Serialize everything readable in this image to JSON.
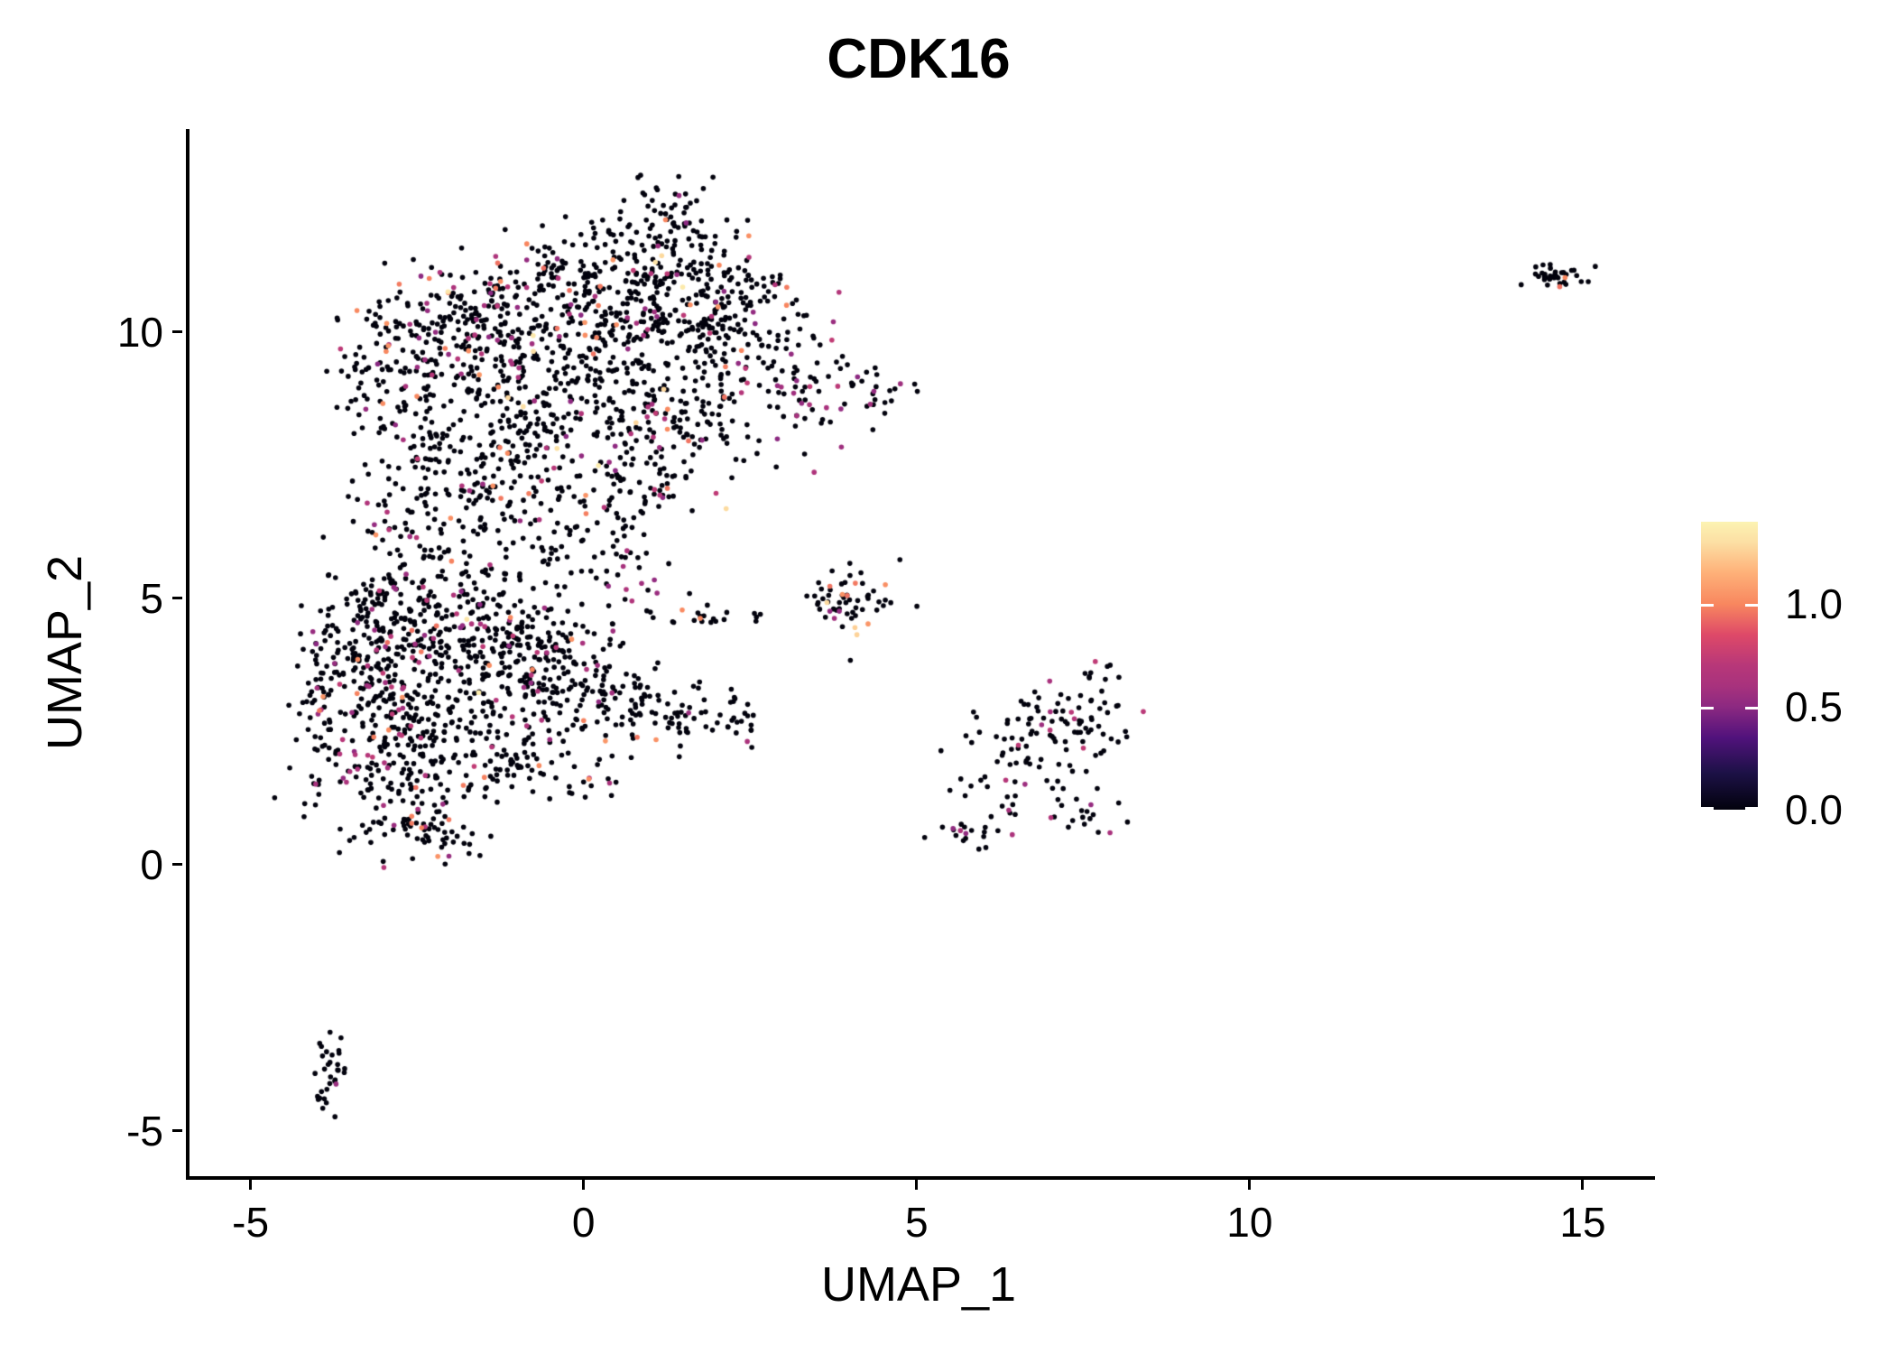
{
  "chart_data": {
    "type": "scatter",
    "title": "CDK16",
    "xlabel": "UMAP_1",
    "ylabel": "UMAP_2",
    "x_ticks": [
      -5,
      0,
      5,
      10,
      15
    ],
    "y_ticks": [
      -5,
      0,
      5,
      10
    ],
    "xlim": [
      -5.97,
      16.03
    ],
    "ylim": [
      -5.85,
      13.81
    ],
    "grid": false,
    "point_radius_px": 2.8,
    "seed": 42,
    "legend": {
      "ticks": [
        1.0,
        0.5,
        0.0
      ],
      "vmin": 0.0,
      "vmax": 1.4,
      "position": "right"
    },
    "colorscale": [
      [
        0.0,
        "#02020d"
      ],
      [
        0.18,
        "#1d1147"
      ],
      [
        0.35,
        "#51127c"
      ],
      [
        0.5,
        "#8c2981"
      ],
      [
        0.6,
        "#a8327d"
      ],
      [
        0.7,
        "#b73779"
      ],
      [
        0.85,
        "#de4968"
      ],
      [
        1.0,
        "#f8875f"
      ],
      [
        1.15,
        "#feb078"
      ],
      [
        1.3,
        "#fcdfa4"
      ],
      [
        1.4,
        "#fcf3b2"
      ]
    ],
    "mixes": {
      "standard": [
        [
          0,
          0.878
        ],
        [
          0.55,
          0.04
        ],
        [
          0.68,
          0.04
        ],
        [
          1.0,
          0.035
        ],
        [
          1.32,
          0.007
        ]
      ],
      "magenta": [
        [
          0,
          0.74
        ],
        [
          0.55,
          0.13
        ],
        [
          0.68,
          0.13
        ]
      ],
      "magenta2": [
        [
          0,
          0.8
        ],
        [
          0.55,
          0.1
        ],
        [
          0.68,
          0.1
        ]
      ],
      "plain": [
        [
          0,
          0.95
        ],
        [
          0.6,
          0.035
        ],
        [
          1.0,
          0.015
        ]
      ],
      "orange": [
        [
          0,
          0.82
        ],
        [
          0.55,
          0.05
        ],
        [
          1.0,
          0.1
        ],
        [
          1.3,
          0.03
        ]
      ],
      "black": [
        [
          0,
          1.0
        ]
      ]
    },
    "clusters": [
      {
        "x": 1.15,
        "y": 12.2,
        "sx": 0.45,
        "sy": 0.35,
        "n": 55,
        "mix": "standard"
      },
      {
        "x": 0.3,
        "y": 11.3,
        "sx": 0.9,
        "sy": 0.5,
        "n": 130,
        "mix": "standard"
      },
      {
        "x": 1.7,
        "y": 11.0,
        "sx": 0.6,
        "sy": 0.5,
        "n": 80,
        "mix": "standard"
      },
      {
        "x": -0.8,
        "y": 10.3,
        "sx": 0.9,
        "sy": 0.5,
        "n": 140,
        "mix": "standard"
      },
      {
        "x": 0.7,
        "y": 10.1,
        "sx": 0.8,
        "sy": 0.5,
        "n": 130,
        "mix": "standard"
      },
      {
        "x": 2.2,
        "y": 9.9,
        "sx": 0.6,
        "sy": 0.55,
        "n": 90,
        "mix": "standard"
      },
      {
        "x": -2.2,
        "y": 9.8,
        "sx": 0.65,
        "sy": 0.5,
        "n": 100,
        "mix": "standard"
      },
      {
        "x": -3.1,
        "y": 9.2,
        "sx": 0.4,
        "sy": 0.55,
        "n": 55,
        "mix": "standard"
      },
      {
        "x": 3.2,
        "y": 9.0,
        "sx": 0.5,
        "sy": 0.55,
        "n": 65,
        "mix": "magenta"
      },
      {
        "x": 4.2,
        "y": 8.8,
        "sx": 0.35,
        "sy": 0.3,
        "n": 20,
        "mix": "plain"
      },
      {
        "x": -1.1,
        "y": 9.0,
        "sx": 0.8,
        "sy": 0.55,
        "n": 130,
        "mix": "standard"
      },
      {
        "x": 0.5,
        "y": 8.8,
        "sx": 0.8,
        "sy": 0.55,
        "n": 120,
        "mix": "standard"
      },
      {
        "x": -2.4,
        "y": 8.1,
        "sx": 0.55,
        "sy": 0.5,
        "n": 75,
        "mix": "standard"
      },
      {
        "x": 1.6,
        "y": 8.3,
        "sx": 0.6,
        "sy": 0.5,
        "n": 70,
        "mix": "standard"
      },
      {
        "x": -0.6,
        "y": 7.7,
        "sx": 0.8,
        "sy": 0.5,
        "n": 100,
        "mix": "standard"
      },
      {
        "x": 0.9,
        "y": 7.3,
        "sx": 0.55,
        "sy": 0.45,
        "n": 55,
        "mix": "standard"
      },
      {
        "x": -1.7,
        "y": 6.9,
        "sx": 0.55,
        "sy": 0.45,
        "n": 60,
        "mix": "standard"
      },
      {
        "x": -2.7,
        "y": 6.3,
        "sx": 0.45,
        "sy": 0.45,
        "n": 45,
        "mix": "standard"
      },
      {
        "x": -0.3,
        "y": 6.5,
        "sx": 0.5,
        "sy": 0.4,
        "n": 40,
        "mix": "plain"
      },
      {
        "x": 0.4,
        "y": 5.9,
        "sx": 0.4,
        "sy": 0.35,
        "n": 22,
        "mix": "plain"
      },
      {
        "x": -2.1,
        "y": 5.5,
        "sx": 0.45,
        "sy": 0.35,
        "n": 30,
        "mix": "standard"
      },
      {
        "x": 0.8,
        "y": 5.3,
        "sx": 0.3,
        "sy": 0.25,
        "n": 12,
        "mix": "magenta"
      },
      {
        "x": 1.75,
        "y": 4.65,
        "sx": 0.42,
        "sy": 0.1,
        "n": 20,
        "mix": "plain"
      },
      {
        "x": 2.2,
        "y": 10.7,
        "sx": 0.4,
        "sy": 0.35,
        "n": 35,
        "mix": "standard"
      },
      {
        "x": -1.9,
        "y": 10.6,
        "sx": 0.5,
        "sy": 0.4,
        "n": 55,
        "mix": "standard"
      },
      {
        "x": -3.95,
        "y": 3.0,
        "sx": 0.22,
        "sy": 1.0,
        "n": 55,
        "mix": "standard"
      },
      {
        "x": -3.4,
        "y": 3.9,
        "sx": 0.45,
        "sy": 0.7,
        "n": 95,
        "mix": "magenta2"
      },
      {
        "x": -2.6,
        "y": 4.4,
        "sx": 0.6,
        "sy": 0.5,
        "n": 110,
        "mix": "standard"
      },
      {
        "x": -1.5,
        "y": 4.5,
        "sx": 0.7,
        "sy": 0.45,
        "n": 100,
        "mix": "standard"
      },
      {
        "x": -0.5,
        "y": 4.2,
        "sx": 0.6,
        "sy": 0.45,
        "n": 85,
        "mix": "standard"
      },
      {
        "x": -2.9,
        "y": 3.1,
        "sx": 0.55,
        "sy": 0.55,
        "n": 105,
        "mix": "standard"
      },
      {
        "x": -1.7,
        "y": 3.3,
        "sx": 0.65,
        "sy": 0.5,
        "n": 110,
        "mix": "standard"
      },
      {
        "x": -0.4,
        "y": 3.3,
        "sx": 0.6,
        "sy": 0.45,
        "n": 85,
        "mix": "standard"
      },
      {
        "x": 0.7,
        "y": 3.0,
        "sx": 0.6,
        "sy": 0.4,
        "n": 65,
        "mix": "plain"
      },
      {
        "x": 1.7,
        "y": 2.8,
        "sx": 0.45,
        "sy": 0.3,
        "n": 38,
        "mix": "plain"
      },
      {
        "x": 2.35,
        "y": 2.6,
        "sx": 0.18,
        "sy": 0.15,
        "n": 8,
        "mix": "black"
      },
      {
        "x": -3.2,
        "y": 2.0,
        "sx": 0.45,
        "sy": 0.5,
        "n": 75,
        "mix": "magenta2"
      },
      {
        "x": -2.2,
        "y": 1.9,
        "sx": 0.55,
        "sy": 0.45,
        "n": 75,
        "mix": "standard"
      },
      {
        "x": -1.2,
        "y": 2.1,
        "sx": 0.45,
        "sy": 0.4,
        "n": 50,
        "mix": "plain"
      },
      {
        "x": -2.7,
        "y": 0.9,
        "sx": 0.45,
        "sy": 0.4,
        "n": 55,
        "mix": "standard"
      },
      {
        "x": -2.1,
        "y": 0.5,
        "sx": 0.3,
        "sy": 0.25,
        "n": 25,
        "mix": "plain"
      },
      {
        "x": -0.3,
        "y": 1.6,
        "sx": 0.4,
        "sy": 0.3,
        "n": 22,
        "mix": "plain"
      },
      {
        "x": -3.3,
        "y": 5.0,
        "sx": 0.3,
        "sy": 0.3,
        "n": 30,
        "mix": "magenta2"
      },
      {
        "x": -1.2,
        "y": 5.6,
        "sx": 0.7,
        "sy": 0.3,
        "n": 28,
        "mix": "plain"
      },
      {
        "x": 3.9,
        "y": 5.0,
        "sx": 0.33,
        "sy": 0.38,
        "n": 58,
        "mix": "orange"
      },
      {
        "x": 7.25,
        "y": 2.85,
        "sx": 0.5,
        "sy": 0.4,
        "n": 60,
        "mix": "magenta2"
      },
      {
        "x": 6.5,
        "y": 2.3,
        "sx": 0.4,
        "sy": 0.3,
        "n": 30,
        "mix": "magenta2"
      },
      {
        "x": 6.9,
        "y": 1.7,
        "sx": 0.35,
        "sy": 0.3,
        "n": 18,
        "mix": "plain"
      },
      {
        "x": 6.2,
        "y": 1.2,
        "sx": 0.4,
        "sy": 0.25,
        "n": 16,
        "mix": "plain"
      },
      {
        "x": 5.7,
        "y": 0.65,
        "sx": 0.35,
        "sy": 0.18,
        "n": 20,
        "mix": "magenta2"
      },
      {
        "x": 7.5,
        "y": 0.85,
        "sx": 0.3,
        "sy": 0.18,
        "n": 16,
        "mix": "magenta2"
      },
      {
        "x": 7.8,
        "y": 3.4,
        "sx": 0.2,
        "sy": 0.25,
        "n": 8,
        "mix": "black"
      },
      {
        "x": 14.5,
        "y": 11.05,
        "sx": 0.26,
        "sy": 0.12,
        "n": 34,
        "mix": "black"
      },
      {
        "x": -3.85,
        "y": -3.4,
        "sx": 0.1,
        "sy": 0.25,
        "n": 12,
        "mix": "black"
      },
      {
        "x": -3.75,
        "y": -3.85,
        "sx": 0.1,
        "sy": 0.18,
        "n": 8,
        "mix": "black"
      },
      {
        "x": -3.92,
        "y": -4.25,
        "sx": 0.13,
        "sy": 0.2,
        "n": 11,
        "mix": "black"
      }
    ],
    "extra_points": [
      {
        "x": -0.96,
        "y": 8.6,
        "v": 1.3
      },
      {
        "x": 4.02,
        "y": 4.45,
        "v": 1.25
      },
      {
        "x": 14.68,
        "y": 11.02,
        "v": 1.0
      },
      {
        "x": 14.6,
        "y": 10.85,
        "v": 0.95
      },
      {
        "x": -3.77,
        "y": -4.12,
        "v": 0.55
      },
      {
        "x": 2.6,
        "y": 4.7,
        "v": 0.0
      },
      {
        "x": 4.95,
        "y": 4.85,
        "v": 0.0
      },
      {
        "x": 8.1,
        "y": 2.4,
        "v": 0.0
      },
      {
        "x": -4.25,
        "y": 0.9,
        "v": 0.0
      }
    ]
  }
}
